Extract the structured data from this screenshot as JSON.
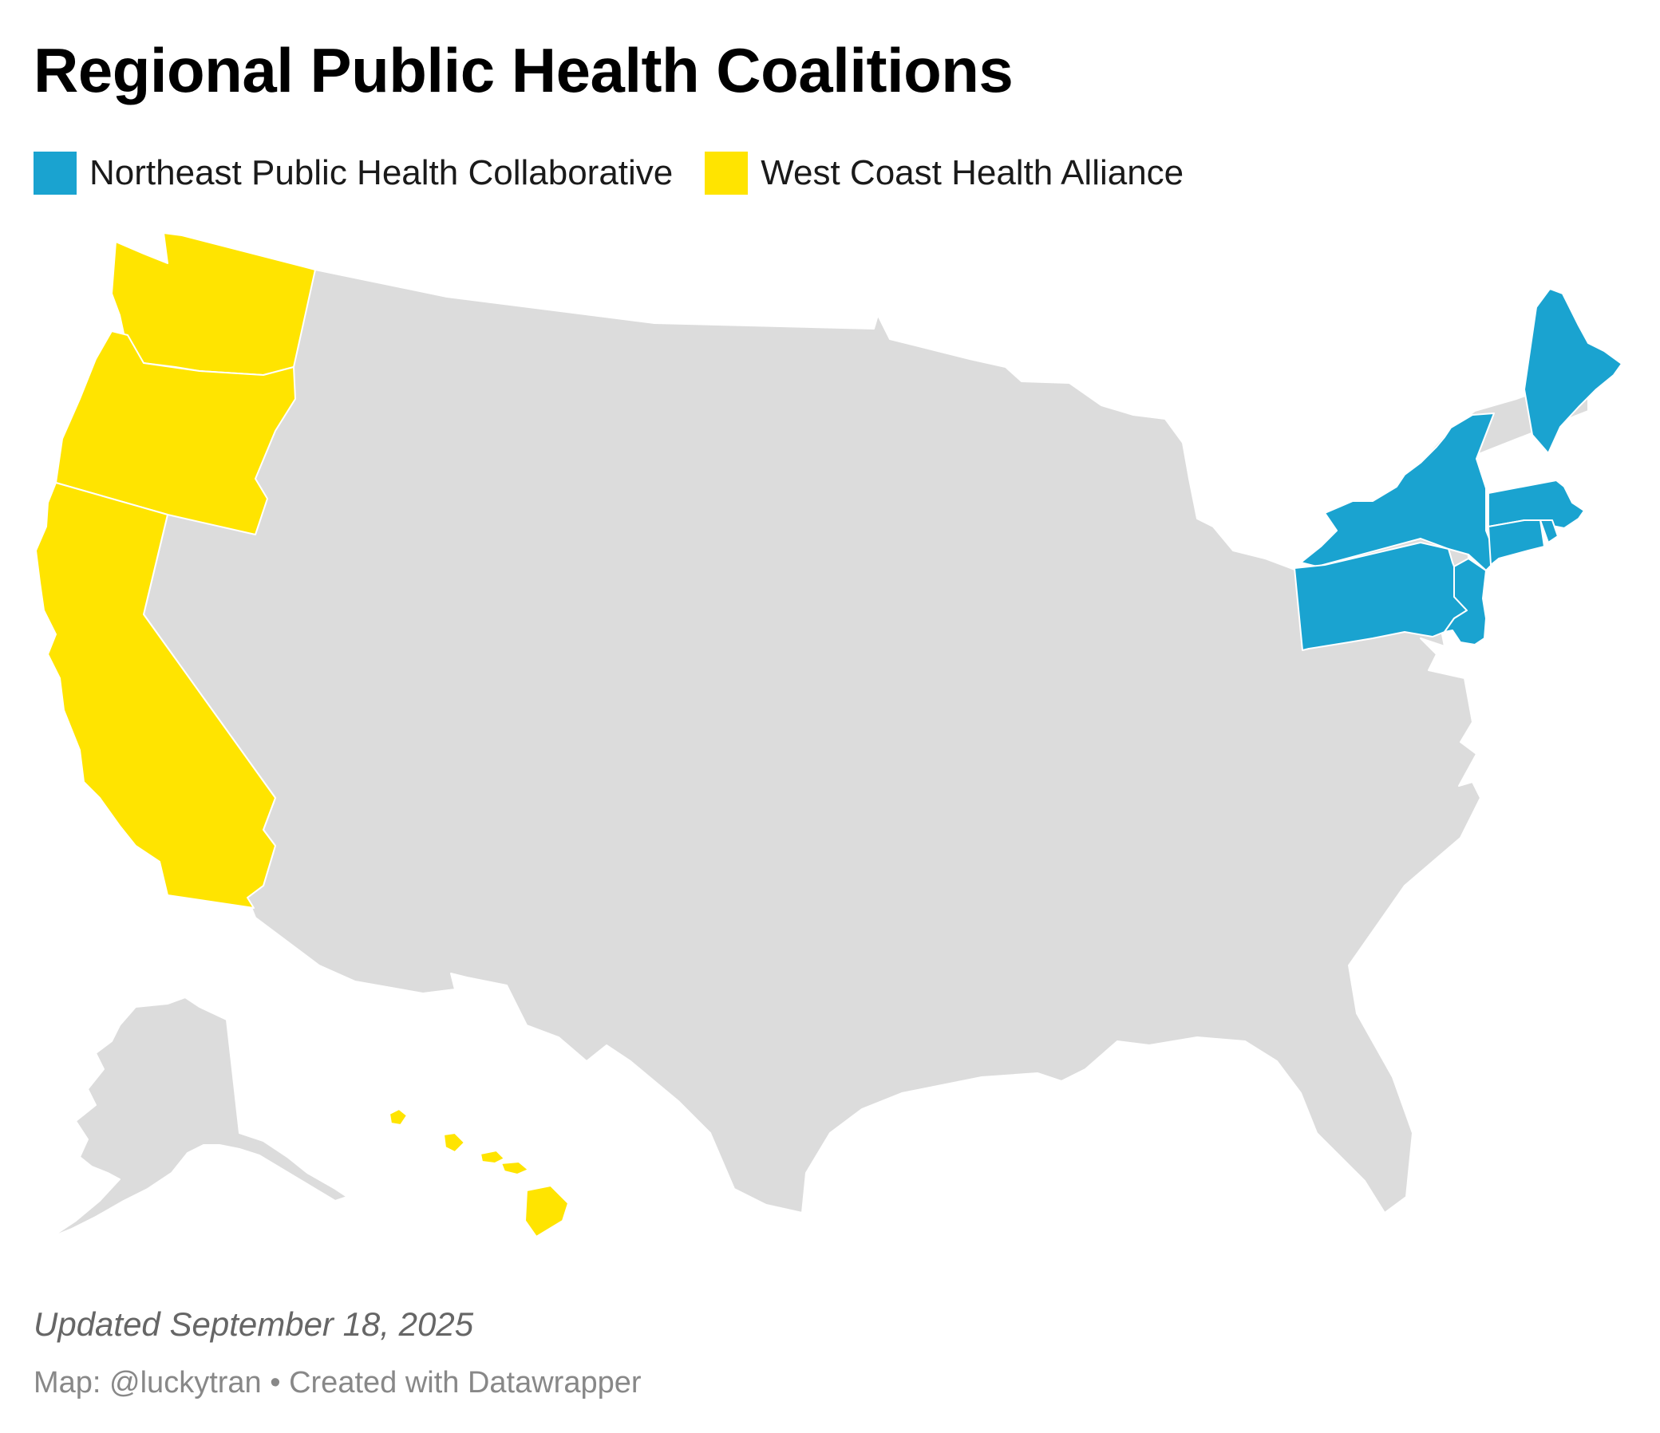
{
  "title": "Regional Public Health Coalitions",
  "legend": [
    {
      "label": "Northeast Public Health Collaborative",
      "color": "#1aa3d0"
    },
    {
      "label": "West Coast Health Alliance",
      "color": "#ffe400"
    }
  ],
  "colors": {
    "default_state": "#dcdcdc",
    "border": "#ffffff"
  },
  "map": {
    "coalitions": {
      "northeast": [
        "Maine",
        "New York",
        "Massachusetts",
        "Connecticut",
        "Rhode Island",
        "Pennsylvania",
        "New Jersey"
      ],
      "west_coast": [
        "Washington",
        "Oregon",
        "California",
        "Hawaii"
      ]
    }
  },
  "footer": {
    "updated": "Updated September 18, 2025",
    "credit": "Map: @luckytran • Created with Datawrapper"
  }
}
